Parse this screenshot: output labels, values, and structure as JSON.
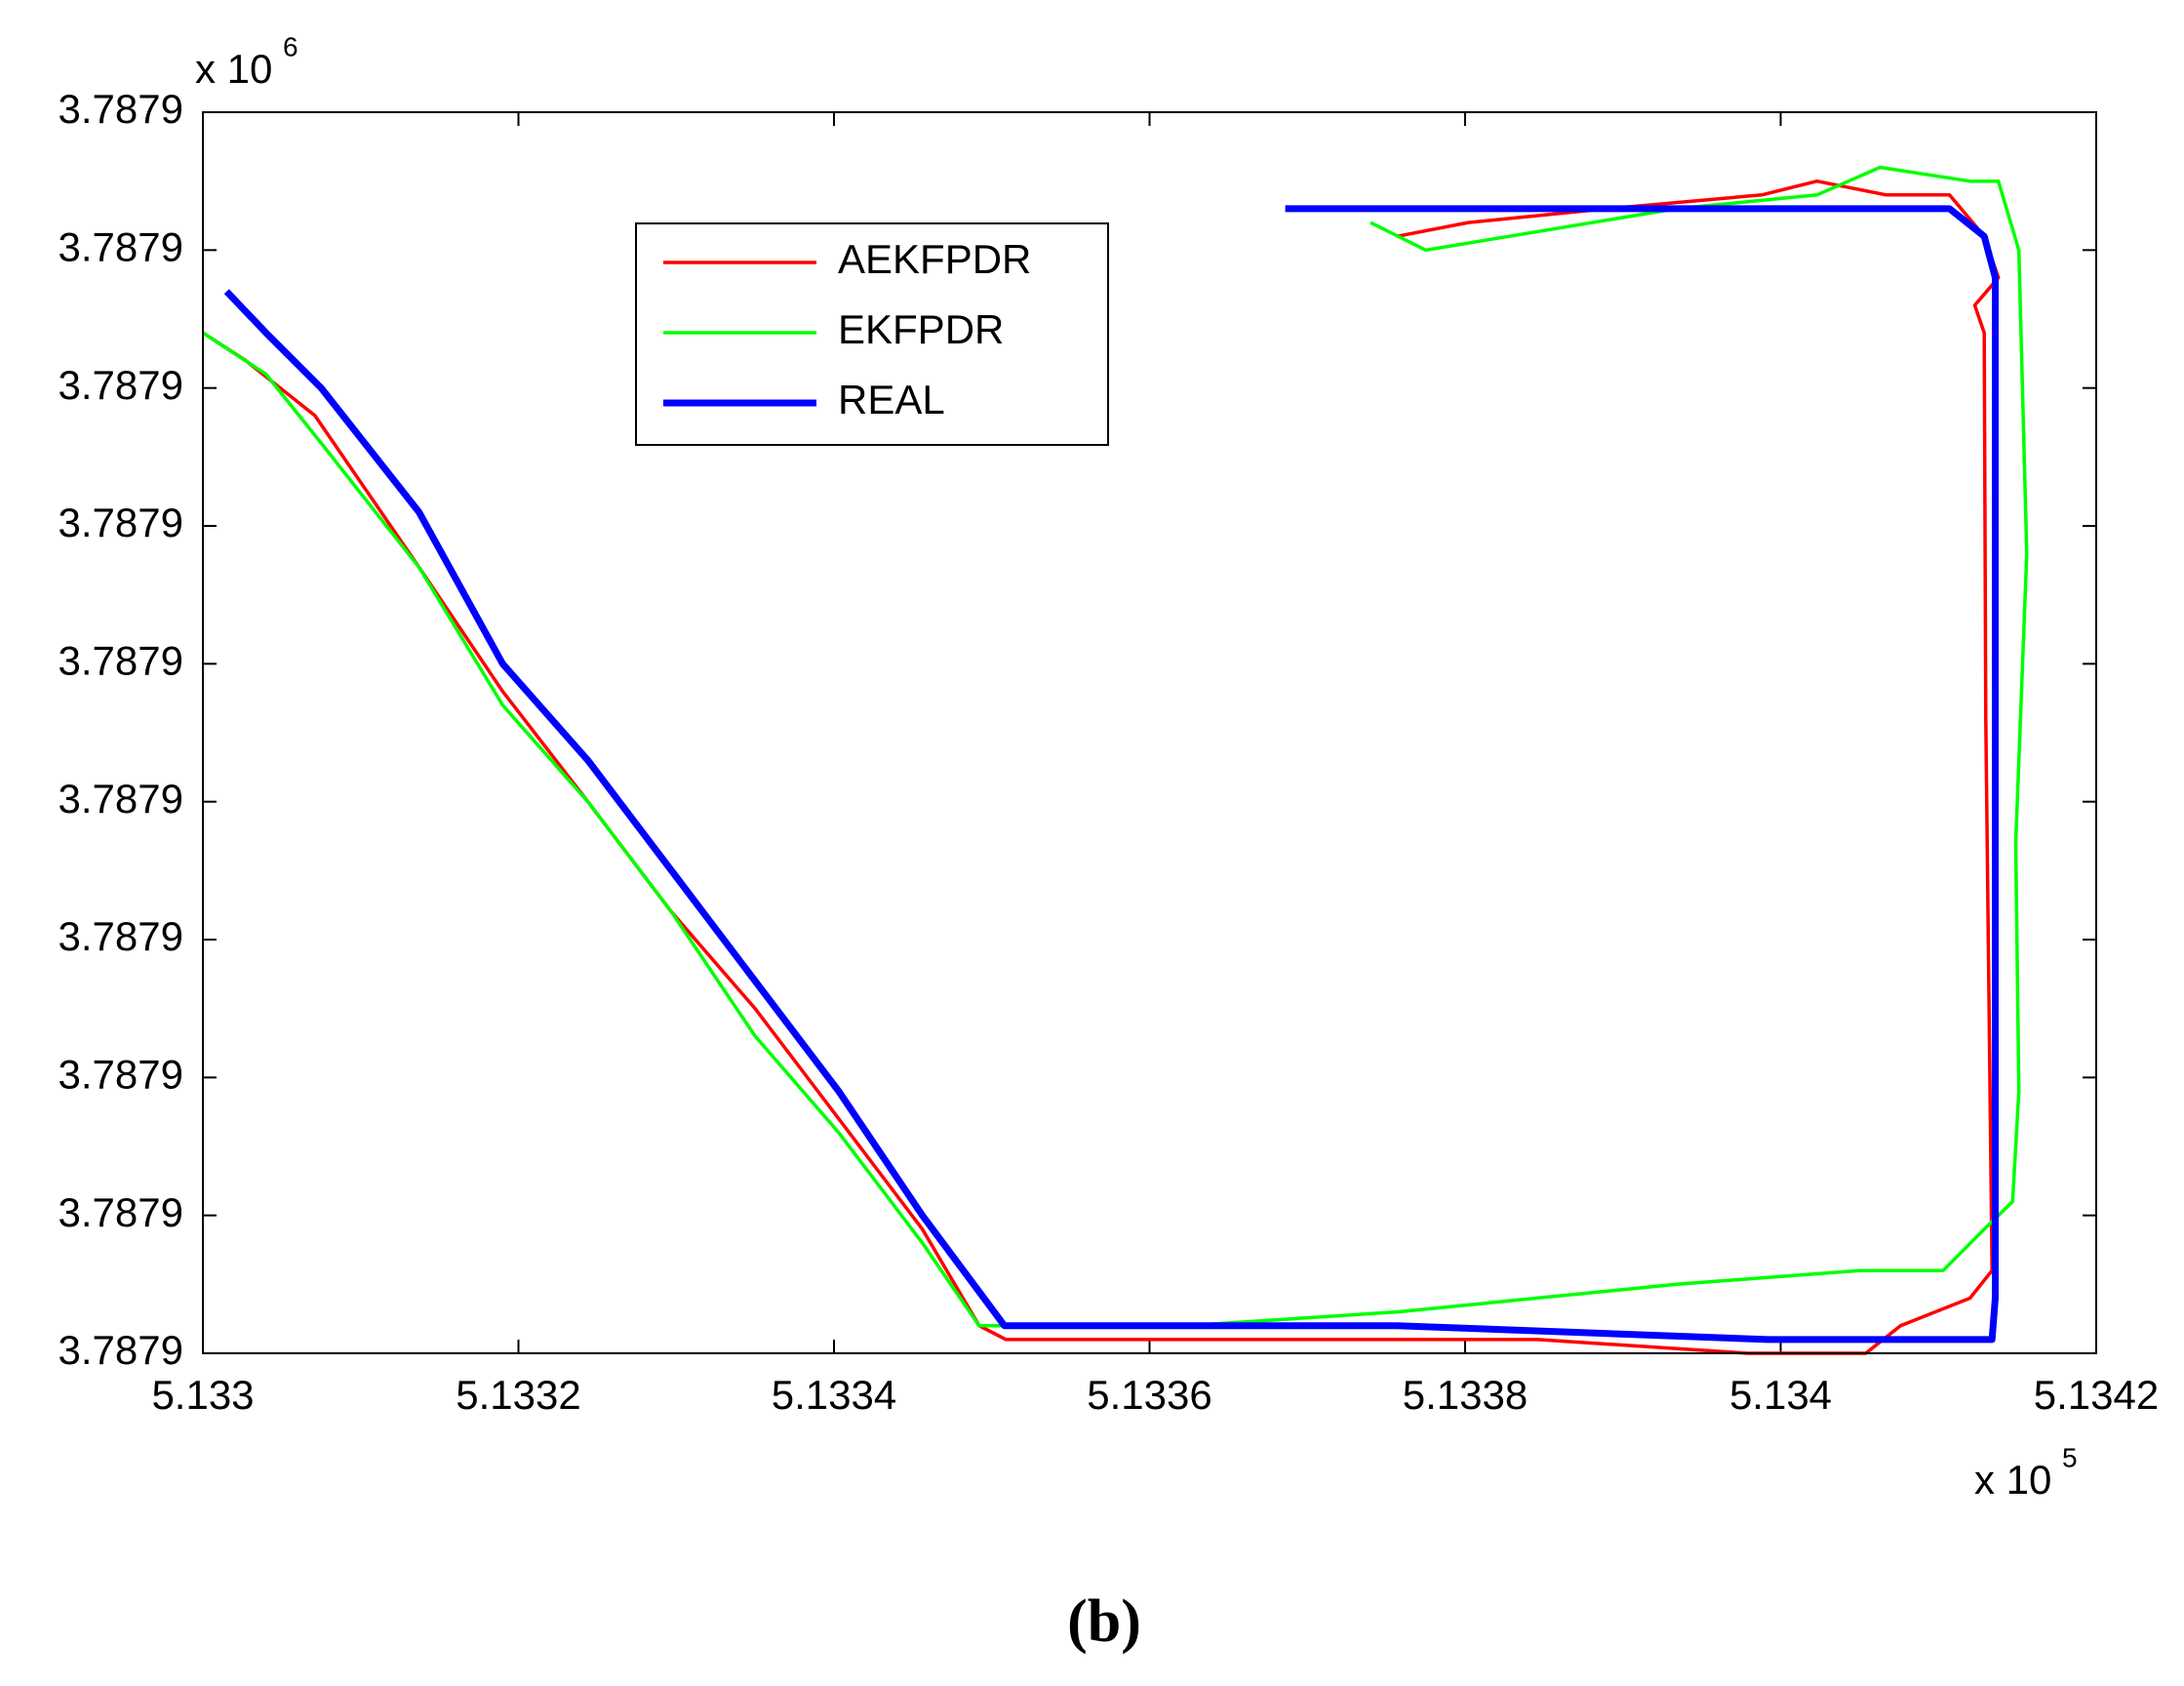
{
  "chart_data": {
    "type": "line",
    "caption": "(b)",
    "y_scale_base": "x 10",
    "y_scale_exponent": "6",
    "x_scale_base": "x 10",
    "x_scale_exponent": "5",
    "xlim": [
      5.133,
      5.1342
    ],
    "xticks": [
      5.133,
      5.1332,
      5.1334,
      5.1336,
      5.1338,
      5.134,
      5.1342
    ],
    "ylim": [
      3.78785,
      3.78794
    ],
    "yticks": [
      {
        "value": 3.78785,
        "label": "3.7879"
      },
      {
        "value": 3.78786,
        "label": "3.7879"
      },
      {
        "value": 3.78787,
        "label": "3.7879"
      },
      {
        "value": 3.78788,
        "label": "3.7879"
      },
      {
        "value": 3.78789,
        "label": "3.7879"
      },
      {
        "value": 3.7879,
        "label": "3.7879"
      },
      {
        "value": 3.78791,
        "label": "3.7879"
      },
      {
        "value": 3.78792,
        "label": "3.7879"
      },
      {
        "value": 3.78793,
        "label": "3.7879"
      },
      {
        "value": 3.78794,
        "label": "3.7879"
      }
    ],
    "grid": false,
    "legend": "upper left",
    "series": [
      {
        "name": "AEKFPDR",
        "color": "#ff0000",
        "x": [
          5.133,
          5.133027,
          5.133071,
          5.133137,
          5.13319,
          5.133244,
          5.133297,
          5.13335,
          5.133403,
          5.133456,
          5.133492,
          5.133509,
          5.133669,
          5.133846,
          5.133979,
          5.134054,
          5.134076,
          5.13412,
          5.134134,
          5.13413,
          5.134129,
          5.134123,
          5.134138,
          5.134129,
          5.134107,
          5.134067,
          5.134023,
          5.133988,
          5.13389,
          5.133802,
          5.133757
        ],
        "values": [
          3.787924,
          3.787922,
          3.787918,
          3.787907,
          3.787898,
          3.78789,
          3.787882,
          3.787875,
          3.787867,
          3.787859,
          3.787852,
          3.787851,
          3.787851,
          3.787851,
          3.78785,
          3.78785,
          3.787852,
          3.787854,
          3.787856,
          3.787896,
          3.787924,
          3.787926,
          3.787928,
          3.787931,
          3.787934,
          3.787934,
          3.787935,
          3.787934,
          3.787933,
          3.787932,
          3.787931
        ]
      },
      {
        "name": "EKFPDR",
        "color": "#00ff00",
        "x": [
          5.133,
          5.13304,
          5.133075,
          5.133137,
          5.13319,
          5.133244,
          5.133297,
          5.13335,
          5.133403,
          5.133456,
          5.133492,
          5.133624,
          5.133757,
          5.133934,
          5.13405,
          5.134103,
          5.134129,
          5.134147,
          5.134151,
          5.134149,
          5.134156,
          5.134151,
          5.134138,
          5.13412,
          5.134063,
          5.134023,
          5.133934,
          5.133828,
          5.133775,
          5.13374
        ],
        "values": [
          3.787924,
          3.787921,
          3.787916,
          3.787907,
          3.787897,
          3.78789,
          3.787882,
          3.787873,
          3.787866,
          3.787858,
          3.787852,
          3.787852,
          3.787853,
          3.787855,
          3.787856,
          3.787856,
          3.787859,
          3.787861,
          3.787869,
          3.787887,
          3.787908,
          3.78793,
          3.787935,
          3.787935,
          3.787936,
          3.787934,
          3.787933,
          3.787931,
          3.78793,
          3.787932
        ]
      },
      {
        "name": "REAL",
        "color": "#0000ff",
        "x": [
          5.133015,
          5.13304,
          5.133075,
          5.133137,
          5.13319,
          5.133244,
          5.133297,
          5.13335,
          5.133403,
          5.133456,
          5.133508,
          5.133523,
          5.133757,
          5.133992,
          5.134134,
          5.134136,
          5.134136,
          5.134129,
          5.134107,
          5.133934,
          5.133686
        ],
        "values": [
          3.787927,
          3.787924,
          3.78792,
          3.787911,
          3.7879,
          3.787893,
          3.787885,
          3.787877,
          3.787869,
          3.78786,
          3.787852,
          3.787852,
          3.787852,
          3.787851,
          3.787851,
          3.787854,
          3.787928,
          3.787931,
          3.787933,
          3.787933,
          3.787933
        ]
      }
    ]
  }
}
